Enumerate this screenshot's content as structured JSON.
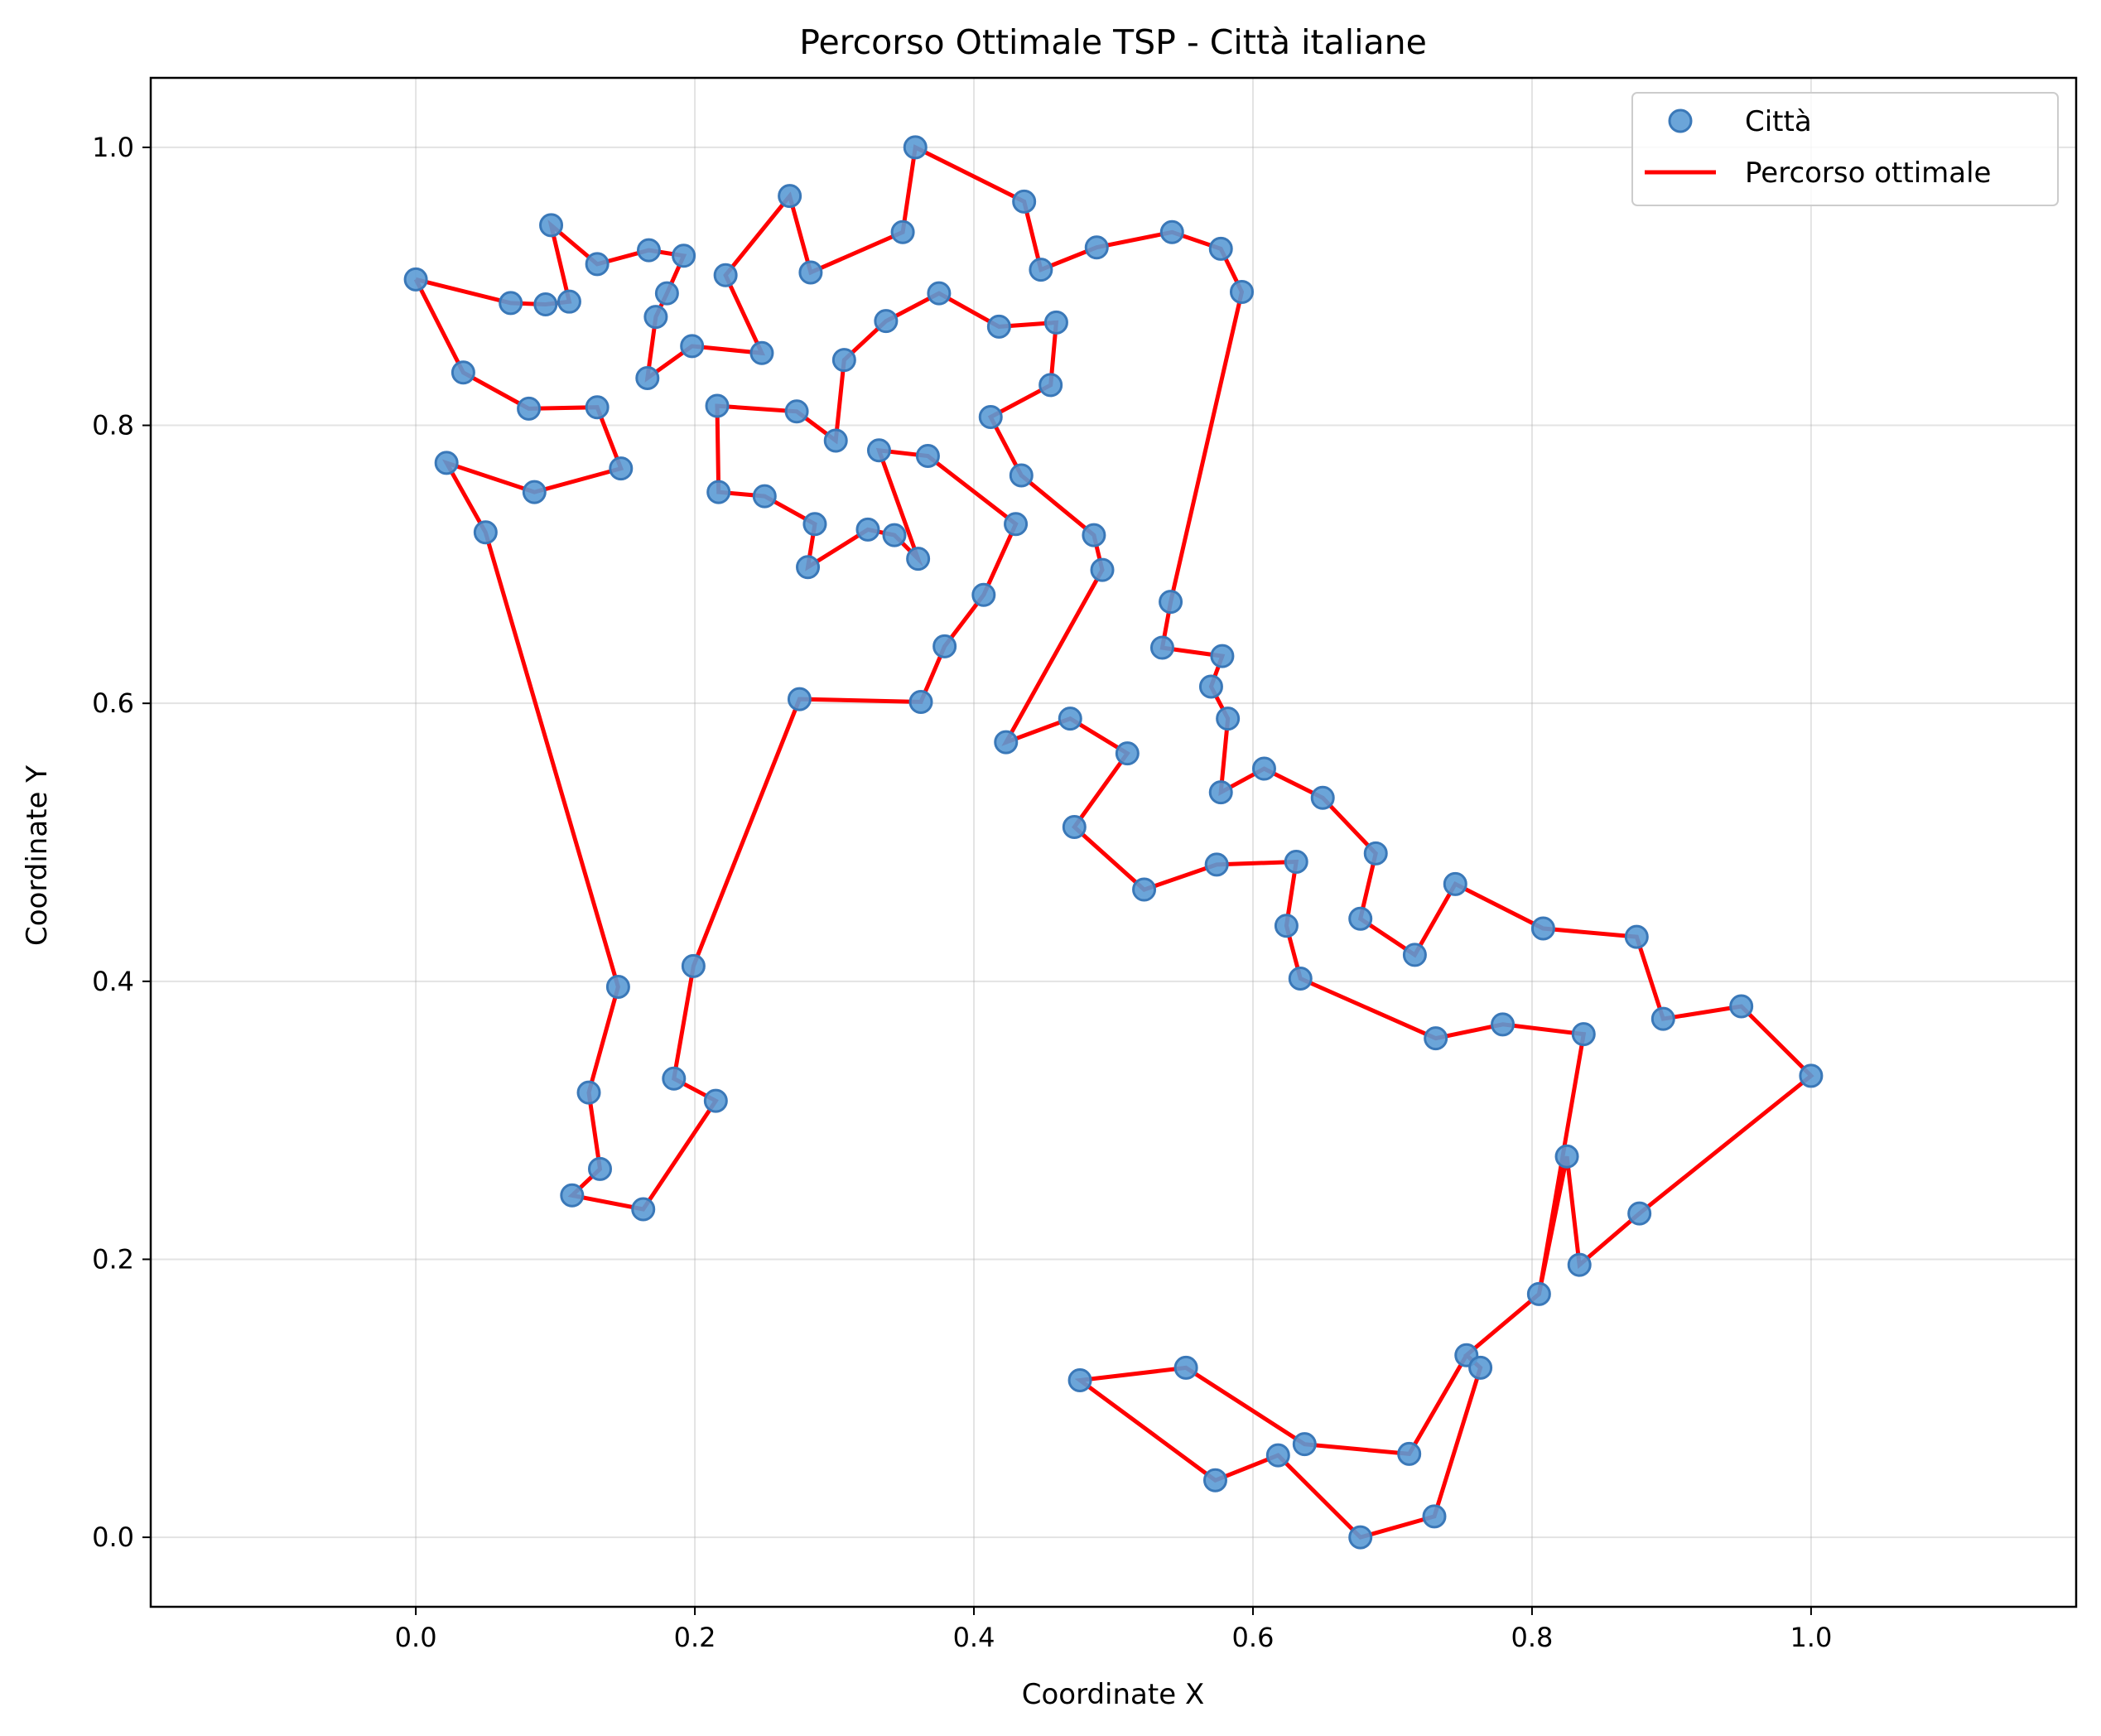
{
  "chart_data": {
    "type": "scatter",
    "title": "Percorso Ottimale TSP - Città italiane",
    "xlabel": "Coordinate X",
    "ylabel": "Coordinate Y",
    "xlim": [
      -0.19,
      1.19
    ],
    "ylim": [
      -0.05,
      1.05
    ],
    "xticks": [
      0.0,
      0.2,
      0.4,
      0.6,
      0.8,
      1.0
    ],
    "yticks": [
      0.0,
      0.2,
      0.4,
      0.6,
      0.8,
      1.0
    ],
    "xtick_labels": [
      "0.0",
      "0.2",
      "0.4",
      "0.6",
      "0.8",
      "1.0"
    ],
    "ytick_labels": [
      "0.0",
      "0.2",
      "0.4",
      "0.6",
      "0.8",
      "1.0"
    ],
    "grid": true,
    "legend_position": "top-right",
    "series": [
      {
        "name": "Città",
        "kind": "points",
        "color": "#5b9bd5",
        "edge_color": "#3a78b8"
      },
      {
        "name": "Percorso ottimale",
        "kind": "line",
        "color": "#ff0000"
      }
    ],
    "route": [
      [
        0.0,
        0.905
      ],
      [
        0.068,
        0.888
      ],
      [
        0.093,
        0.887
      ],
      [
        0.11,
        0.889
      ],
      [
        0.097,
        0.944
      ],
      [
        0.13,
        0.916
      ],
      [
        0.167,
        0.926
      ],
      [
        0.192,
        0.922
      ],
      [
        0.18,
        0.895
      ],
      [
        0.172,
        0.878
      ],
      [
        0.166,
        0.834
      ],
      [
        0.198,
        0.857
      ],
      [
        0.248,
        0.852
      ],
      [
        0.222,
        0.908
      ],
      [
        0.268,
        0.965
      ],
      [
        0.283,
        0.91
      ],
      [
        0.349,
        0.939
      ],
      [
        0.358,
        1.0
      ],
      [
        0.436,
        0.961
      ],
      [
        0.448,
        0.912
      ],
      [
        0.488,
        0.928
      ],
      [
        0.542,
        0.939
      ],
      [
        0.577,
        0.927
      ],
      [
        0.592,
        0.896
      ],
      [
        0.541,
        0.673
      ],
      [
        0.535,
        0.64
      ],
      [
        0.578,
        0.634
      ],
      [
        0.57,
        0.612
      ],
      [
        0.582,
        0.589
      ],
      [
        0.577,
        0.536
      ],
      [
        0.608,
        0.553
      ],
      [
        0.65,
        0.532
      ],
      [
        0.688,
        0.492
      ],
      [
        0.677,
        0.445
      ],
      [
        0.716,
        0.419
      ],
      [
        0.745,
        0.47
      ],
      [
        0.808,
        0.438
      ],
      [
        0.875,
        0.432
      ],
      [
        0.894,
        0.373
      ],
      [
        0.95,
        0.382
      ],
      [
        1.0,
        0.332
      ],
      [
        0.877,
        0.233
      ],
      [
        0.834,
        0.196
      ],
      [
        0.825,
        0.274
      ],
      [
        0.805,
        0.175
      ],
      [
        0.753,
        0.131
      ],
      [
        0.763,
        0.122
      ],
      [
        0.73,
        0.015
      ],
      [
        0.677,
        0.0
      ],
      [
        0.618,
        0.059
      ],
      [
        0.573,
        0.041
      ],
      [
        0.476,
        0.113
      ],
      [
        0.552,
        0.122
      ],
      [
        0.637,
        0.067
      ],
      [
        0.712,
        0.06
      ],
      [
        0.753,
        0.131
      ],
      [
        0.805,
        0.175
      ],
      [
        0.837,
        0.362
      ],
      [
        0.779,
        0.369
      ],
      [
        0.731,
        0.359
      ],
      [
        0.634,
        0.402
      ],
      [
        0.624,
        0.44
      ],
      [
        0.631,
        0.486
      ],
      [
        0.574,
        0.484
      ],
      [
        0.522,
        0.466
      ],
      [
        0.472,
        0.511
      ],
      [
        0.51,
        0.564
      ],
      [
        0.469,
        0.589
      ],
      [
        0.423,
        0.572
      ],
      [
        0.492,
        0.696
      ],
      [
        0.486,
        0.721
      ],
      [
        0.434,
        0.764
      ],
      [
        0.412,
        0.806
      ],
      [
        0.455,
        0.829
      ],
      [
        0.459,
        0.874
      ],
      [
        0.418,
        0.871
      ],
      [
        0.375,
        0.895
      ],
      [
        0.337,
        0.875
      ],
      [
        0.307,
        0.847
      ],
      [
        0.301,
        0.789
      ],
      [
        0.273,
        0.81
      ],
      [
        0.216,
        0.814
      ],
      [
        0.217,
        0.752
      ],
      [
        0.25,
        0.749
      ],
      [
        0.286,
        0.729
      ],
      [
        0.281,
        0.698
      ],
      [
        0.324,
        0.725
      ],
      [
        0.343,
        0.721
      ],
      [
        0.36,
        0.704
      ],
      [
        0.332,
        0.782
      ],
      [
        0.367,
        0.778
      ],
      [
        0.43,
        0.729
      ],
      [
        0.407,
        0.678
      ],
      [
        0.379,
        0.641
      ],
      [
        0.362,
        0.601
      ],
      [
        0.275,
        0.603
      ],
      [
        0.199,
        0.411
      ],
      [
        0.185,
        0.33
      ],
      [
        0.215,
        0.314
      ],
      [
        0.163,
        0.236
      ],
      [
        0.112,
        0.246
      ],
      [
        0.132,
        0.265
      ],
      [
        0.124,
        0.32
      ],
      [
        0.145,
        0.396
      ],
      [
        0.05,
        0.723
      ],
      [
        0.022,
        0.773
      ],
      [
        0.085,
        0.752
      ],
      [
        0.147,
        0.769
      ],
      [
        0.13,
        0.813
      ],
      [
        0.081,
        0.812
      ],
      [
        0.034,
        0.838
      ],
      [
        0.0,
        0.905
      ]
    ]
  }
}
